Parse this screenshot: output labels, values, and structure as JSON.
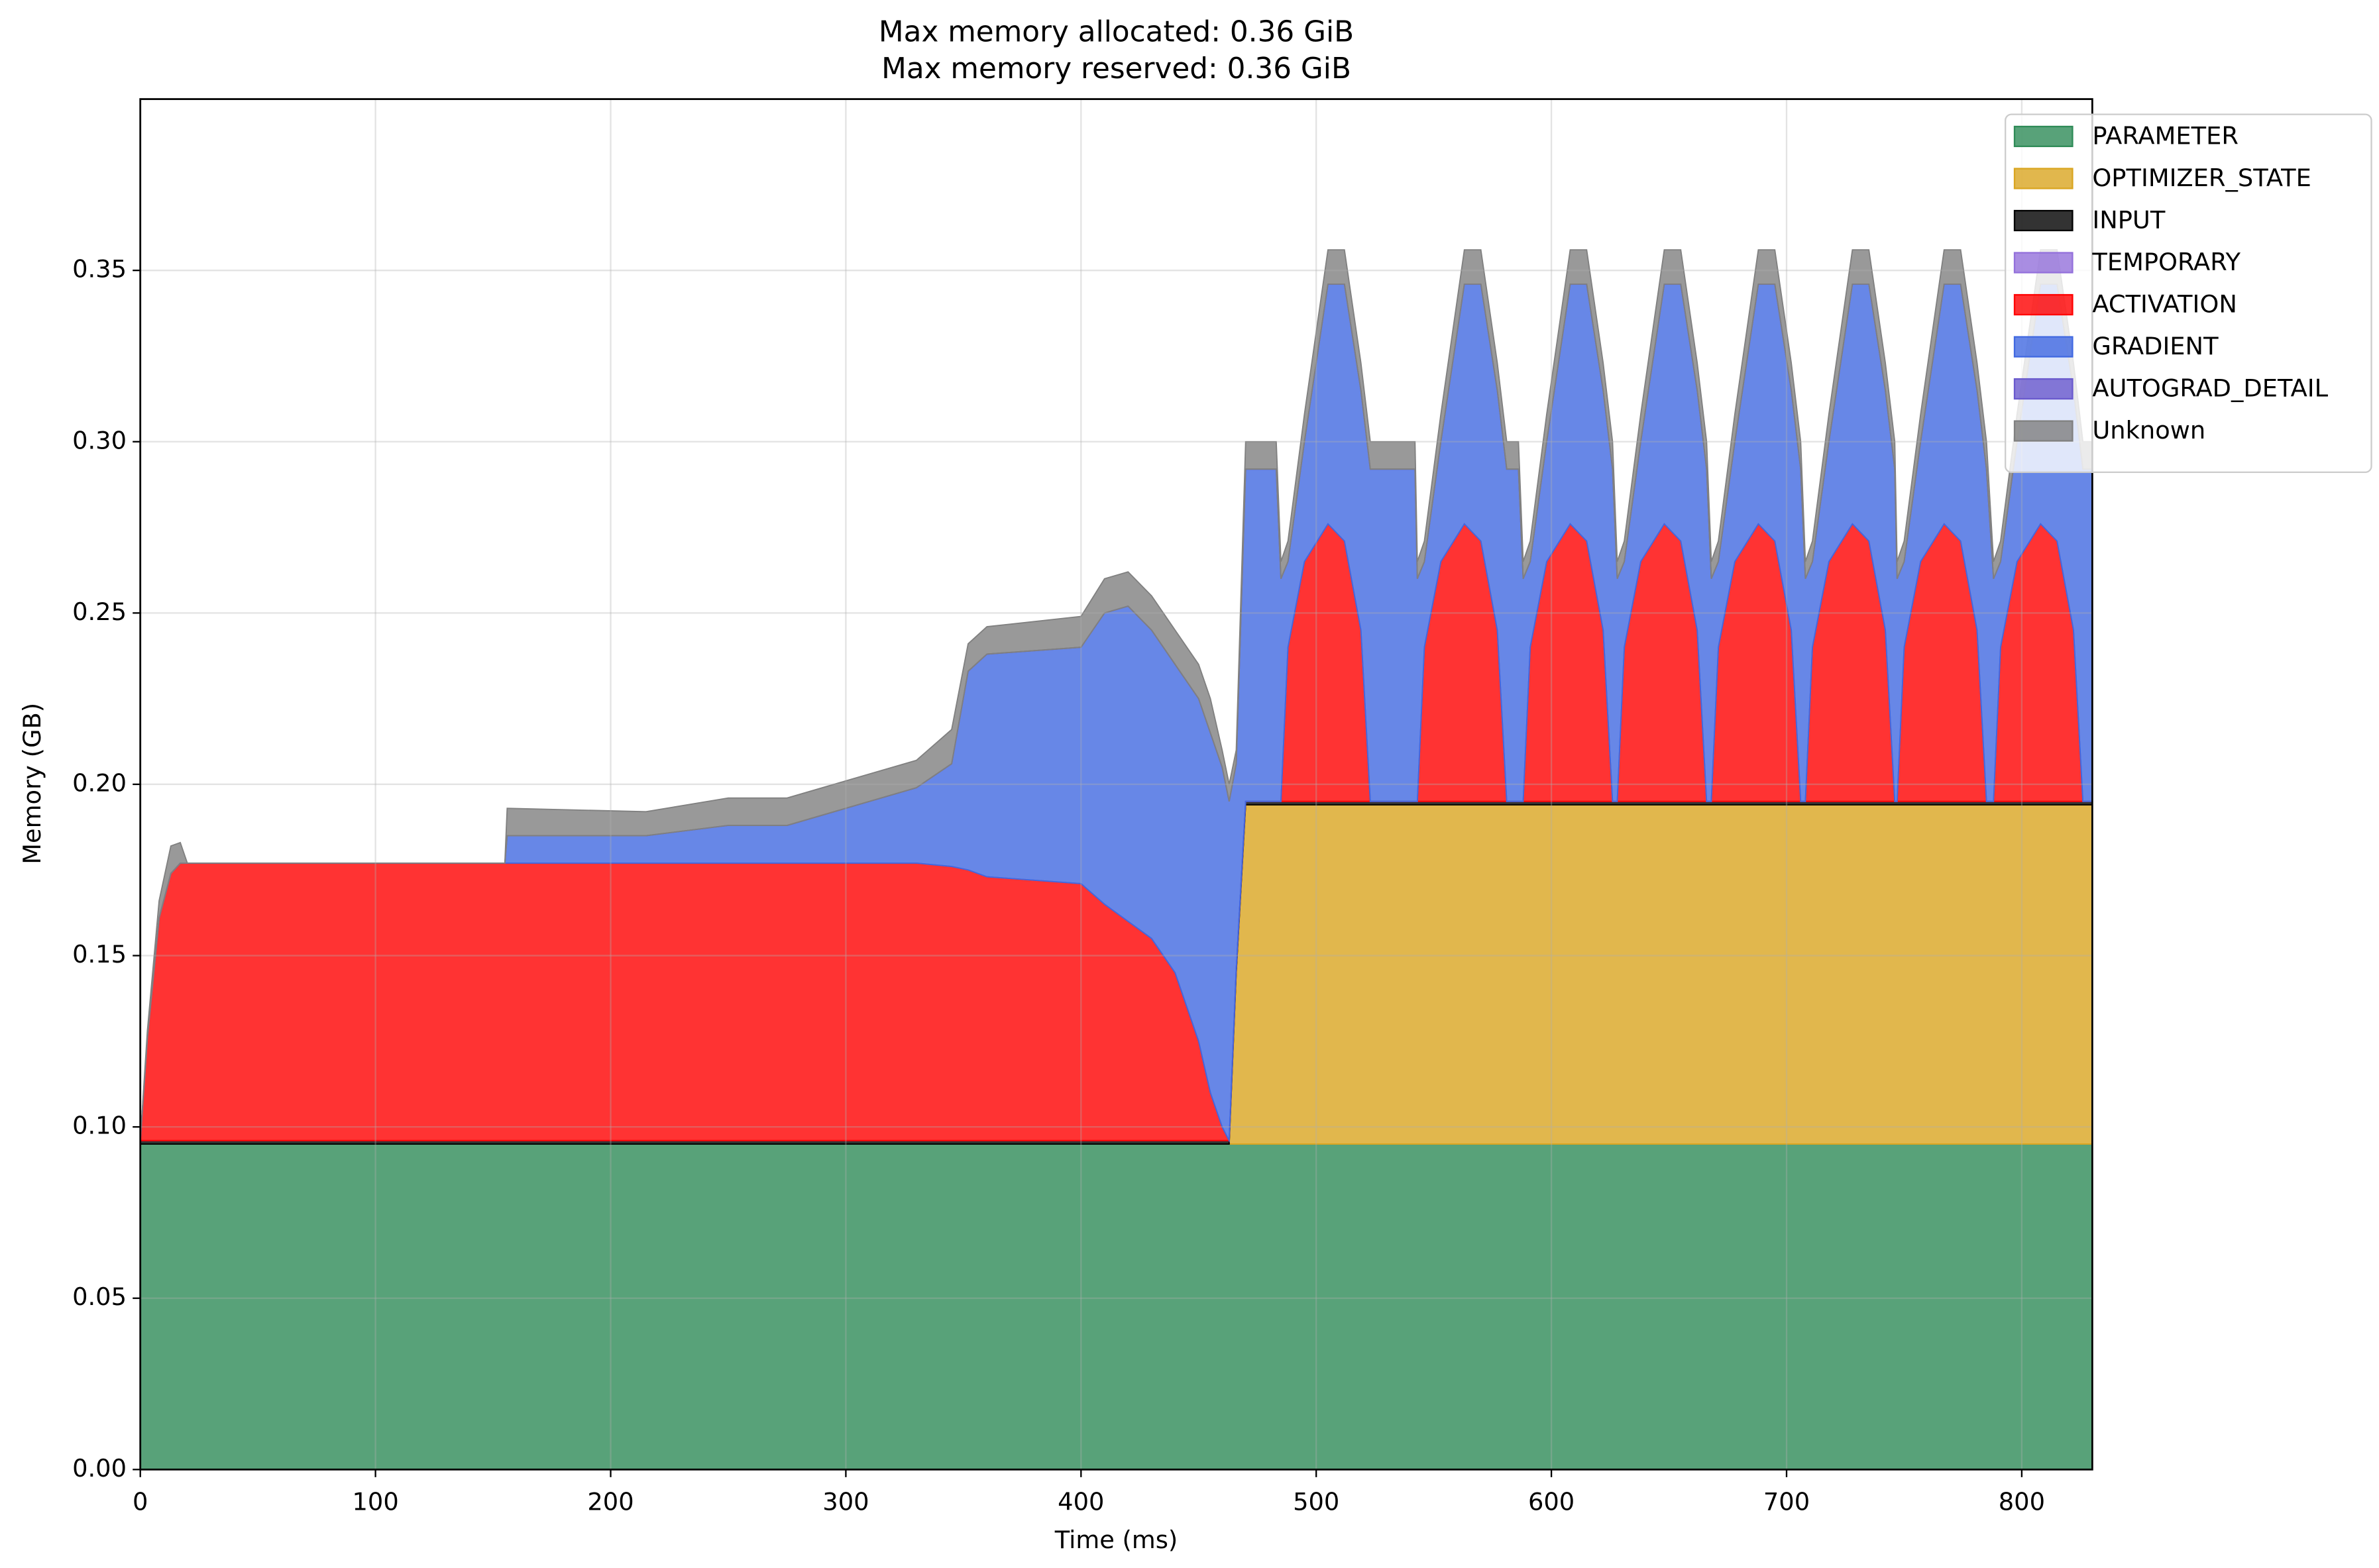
{
  "chart_data": {
    "type": "stacked_area",
    "title": "Max memory allocated: 0.36 GiB",
    "subtitle": "Max memory reserved: 0.36 GiB",
    "xlabel": "Time (ms)",
    "ylabel": "Memory (GB)",
    "xlim": [
      0,
      830
    ],
    "ylim": [
      0,
      0.4
    ],
    "xticks": [
      0,
      100,
      200,
      300,
      400,
      500,
      600,
      700,
      800
    ],
    "yticks": [
      {
        "value": 0,
        "label": "0.00"
      },
      {
        "value": 0.05,
        "label": "0.05"
      },
      {
        "value": 0.1,
        "label": "0.10"
      },
      {
        "value": 0.15,
        "label": "0.15"
      },
      {
        "value": 0.2,
        "label": "0.20"
      },
      {
        "value": 0.25,
        "label": "0.25"
      },
      {
        "value": 0.3,
        "label": "0.30"
      },
      {
        "value": 0.35,
        "label": "0.35"
      }
    ],
    "grid": true,
    "legend": "upper right",
    "x": [
      0,
      3,
      8,
      13,
      17,
      20,
      155,
      156,
      215,
      250,
      275,
      300,
      330,
      345,
      352,
      360,
      400,
      410,
      420,
      430,
      440,
      450,
      455,
      460,
      463,
      466,
      470,
      483,
      485,
      488,
      495,
      505,
      512,
      519,
      523,
      542,
      543,
      546,
      553,
      563,
      570,
      577,
      581,
      586,
      588,
      591,
      598,
      608,
      615,
      622,
      626,
      628,
      631,
      638,
      648,
      655,
      662,
      666,
      668,
      671,
      678,
      688,
      695,
      702,
      706,
      708,
      711,
      718,
      728,
      735,
      742,
      746,
      747,
      750,
      757,
      767,
      774,
      781,
      785,
      788,
      791,
      798,
      808,
      815,
      822,
      826,
      830
    ],
    "series": [
      {
        "name": "PARAMETER",
        "color": "#2e8b57",
        "values": [
          0.095,
          0.095,
          0.095,
          0.095,
          0.095,
          0.095,
          0.095,
          0.095,
          0.095,
          0.095,
          0.095,
          0.095,
          0.095,
          0.095,
          0.095,
          0.095,
          0.095,
          0.095,
          0.095,
          0.095,
          0.095,
          0.095,
          0.095,
          0.095,
          0.095,
          0.095,
          0.095,
          0.095,
          0.095,
          0.095,
          0.095,
          0.095,
          0.095,
          0.095,
          0.095,
          0.095,
          0.095,
          0.095,
          0.095,
          0.095,
          0.095,
          0.095,
          0.095,
          0.095,
          0.095,
          0.095,
          0.095,
          0.095,
          0.095,
          0.095,
          0.095,
          0.095,
          0.095,
          0.095,
          0.095,
          0.095,
          0.095,
          0.095,
          0.095,
          0.095,
          0.095,
          0.095,
          0.095,
          0.095,
          0.095,
          0.095,
          0.095,
          0.095,
          0.095,
          0.095,
          0.095,
          0.095,
          0.095,
          0.095,
          0.095,
          0.095,
          0.095,
          0.095,
          0.095,
          0.095,
          0.095,
          0.095,
          0.095,
          0.095,
          0.095,
          0.095,
          0.095
        ]
      },
      {
        "name": "OPTIMIZER_STATE",
        "color": "#daa520",
        "values": [
          0,
          0,
          0,
          0,
          0,
          0,
          0,
          0,
          0,
          0,
          0,
          0,
          0,
          0,
          0,
          0,
          0,
          0,
          0,
          0,
          0,
          0,
          0,
          0,
          0,
          0.05,
          0.099,
          0.099,
          0.099,
          0.099,
          0.099,
          0.099,
          0.099,
          0.099,
          0.099,
          0.099,
          0.099,
          0.099,
          0.099,
          0.099,
          0.099,
          0.099,
          0.099,
          0.099,
          0.099,
          0.099,
          0.099,
          0.099,
          0.099,
          0.099,
          0.099,
          0.099,
          0.099,
          0.099,
          0.099,
          0.099,
          0.099,
          0.099,
          0.099,
          0.099,
          0.099,
          0.099,
          0.099,
          0.099,
          0.099,
          0.099,
          0.099,
          0.099,
          0.099,
          0.099,
          0.099,
          0.099,
          0.099,
          0.099,
          0.099,
          0.099,
          0.099,
          0.099,
          0.099,
          0.099,
          0.099,
          0.099,
          0.099,
          0.099,
          0.099,
          0.099,
          0.099
        ]
      },
      {
        "name": "INPUT",
        "color": "#000000",
        "values": [
          0.001,
          0.001,
          0.001,
          0.001,
          0.001,
          0.001,
          0.001,
          0.001,
          0.001,
          0.001,
          0.001,
          0.001,
          0.001,
          0.001,
          0.001,
          0.001,
          0.001,
          0.001,
          0.001,
          0.001,
          0.001,
          0.001,
          0.001,
          0.001,
          0.001,
          0.001,
          0.001,
          0.001,
          0.001,
          0.001,
          0.001,
          0.001,
          0.001,
          0.001,
          0.001,
          0.001,
          0.001,
          0.001,
          0.001,
          0.001,
          0.001,
          0.001,
          0.001,
          0.001,
          0.001,
          0.001,
          0.001,
          0.001,
          0.001,
          0.001,
          0.001,
          0.001,
          0.001,
          0.001,
          0.001,
          0.001,
          0.001,
          0.001,
          0.001,
          0.001,
          0.001,
          0.001,
          0.001,
          0.001,
          0.001,
          0.001,
          0.001,
          0.001,
          0.001,
          0.001,
          0.001,
          0.001,
          0.001,
          0.001,
          0.001,
          0.001,
          0.001,
          0.001,
          0.001,
          0.001,
          0.001,
          0.001,
          0.001,
          0.001,
          0.001,
          0.001,
          0.001
        ]
      },
      {
        "name": "TEMPORARY",
        "color": "#9370db",
        "values": [
          0,
          0,
          0,
          0,
          0,
          0,
          0,
          0,
          0,
          0,
          0,
          0,
          0,
          0,
          0,
          0,
          0,
          0,
          0,
          0,
          0,
          0,
          0,
          0,
          0,
          0,
          0,
          0,
          0,
          0,
          0,
          0,
          0,
          0,
          0,
          0,
          0,
          0,
          0,
          0,
          0,
          0,
          0,
          0,
          0,
          0,
          0,
          0,
          0,
          0,
          0,
          0,
          0,
          0,
          0,
          0,
          0,
          0,
          0,
          0,
          0,
          0,
          0,
          0,
          0,
          0,
          0,
          0,
          0,
          0,
          0,
          0,
          0,
          0,
          0,
          0,
          0,
          0,
          0,
          0,
          0,
          0,
          0,
          0,
          0,
          0,
          0
        ]
      },
      {
        "name": "ACTIVATION",
        "color": "#ff0000",
        "values": [
          0,
          0.03,
          0.065,
          0.078,
          0.081,
          0.081,
          0.081,
          0.081,
          0.081,
          0.081,
          0.081,
          0.081,
          0.081,
          0.08,
          0.079,
          0.077,
          0.075,
          0.069,
          0.064,
          0.059,
          0.049,
          0.029,
          0.014,
          0.004,
          0,
          0,
          0,
          0,
          0,
          0.045,
          0.07,
          0.081,
          0.076,
          0.05,
          0,
          0,
          0,
          0.045,
          0.07,
          0.081,
          0.076,
          0.05,
          0,
          0,
          0,
          0.045,
          0.07,
          0.081,
          0.076,
          0.05,
          0,
          0,
          0.045,
          0.07,
          0.081,
          0.076,
          0.05,
          0,
          0,
          0.045,
          0.07,
          0.081,
          0.076,
          0.05,
          0,
          0,
          0.045,
          0.07,
          0.081,
          0.076,
          0.05,
          0,
          0,
          0.045,
          0.07,
          0.081,
          0.076,
          0.05,
          0,
          0,
          0.045,
          0.07,
          0.081,
          0.076,
          0.05,
          0,
          0
        ]
      },
      {
        "name": "GRADIENT",
        "color": "#4169e1",
        "values": [
          0,
          0,
          0,
          0,
          0,
          0,
          0,
          0.008,
          0.008,
          0.011,
          0.011,
          0.016,
          0.022,
          0.03,
          0.058,
          0.065,
          0.069,
          0.085,
          0.092,
          0.09,
          0.09,
          0.1,
          0.105,
          0.105,
          0.099,
          0.06,
          0.097,
          0.097,
          0.065,
          0.025,
          0.035,
          0.07,
          0.075,
          0.07,
          0.097,
          0.097,
          0.065,
          0.025,
          0.035,
          0.07,
          0.075,
          0.07,
          0.097,
          0.097,
          0.065,
          0.025,
          0.035,
          0.07,
          0.075,
          0.07,
          0.097,
          0.065,
          0.025,
          0.035,
          0.07,
          0.075,
          0.07,
          0.097,
          0.065,
          0.025,
          0.035,
          0.07,
          0.075,
          0.07,
          0.097,
          0.065,
          0.025,
          0.035,
          0.07,
          0.075,
          0.07,
          0.097,
          0.065,
          0.025,
          0.035,
          0.07,
          0.075,
          0.07,
          0.097,
          0.065,
          0.025,
          0.035,
          0.07,
          0.075,
          0.07,
          0.097,
          0.097
        ]
      },
      {
        "name": "AUTOGRAD_DETAIL",
        "color": "#6a5acd",
        "values": [
          0,
          0,
          0,
          0,
          0,
          0,
          0,
          0,
          0,
          0,
          0,
          0,
          0,
          0,
          0,
          0,
          0,
          0,
          0,
          0,
          0,
          0,
          0,
          0,
          0,
          0,
          0,
          0,
          0,
          0,
          0,
          0,
          0,
          0,
          0,
          0,
          0,
          0,
          0,
          0,
          0,
          0,
          0,
          0,
          0,
          0,
          0,
          0,
          0,
          0,
          0,
          0,
          0,
          0,
          0,
          0,
          0,
          0,
          0,
          0,
          0,
          0,
          0,
          0,
          0,
          0,
          0,
          0,
          0,
          0,
          0,
          0,
          0,
          0,
          0,
          0,
          0,
          0,
          0,
          0,
          0,
          0,
          0,
          0,
          0,
          0,
          0
        ]
      },
      {
        "name": "Unknown",
        "color": "#808080",
        "values": [
          0,
          0.002,
          0.005,
          0.008,
          0.006,
          0,
          0,
          0.008,
          0.007,
          0.008,
          0.008,
          0.008,
          0.008,
          0.01,
          0.008,
          0.008,
          0.009,
          0.01,
          0.01,
          0.01,
          0.01,
          0.01,
          0.01,
          0.005,
          0.005,
          0.004,
          0.008,
          0.008,
          0.005,
          0.006,
          0.008,
          0.01,
          0.01,
          0.008,
          0.008,
          0.008,
          0.005,
          0.006,
          0.008,
          0.01,
          0.01,
          0.008,
          0.008,
          0.008,
          0.005,
          0.006,
          0.008,
          0.01,
          0.01,
          0.008,
          0.008,
          0.005,
          0.006,
          0.008,
          0.01,
          0.01,
          0.008,
          0.008,
          0.005,
          0.006,
          0.008,
          0.01,
          0.01,
          0.008,
          0.008,
          0.005,
          0.006,
          0.008,
          0.01,
          0.01,
          0.008,
          0.008,
          0.005,
          0.006,
          0.008,
          0.01,
          0.01,
          0.008,
          0.008,
          0.005,
          0.006,
          0.008,
          0.01,
          0.01,
          0.008,
          0.008,
          0.008
        ]
      }
    ]
  }
}
